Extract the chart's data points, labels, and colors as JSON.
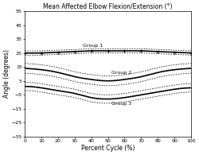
{
  "title": "Mean Affected Elbow Flexion/Extension (°)",
  "xlabel": "Percent Cycle (%)",
  "ylabel": "Angle (degrees)",
  "ylim": [
    -35,
    55
  ],
  "xlim": [
    0,
    100
  ],
  "yticks": [
    55,
    45,
    35,
    25,
    15,
    5,
    -5,
    -15,
    -25,
    -35
  ],
  "xticks": [
    0,
    10,
    20,
    30,
    40,
    50,
    60,
    70,
    80,
    90,
    100
  ],
  "group1_label": "Group 1",
  "group2_label": "Group 2",
  "group3_label": "Group 3",
  "group1_mean": [
    25,
    25,
    25.5,
    26,
    26.5,
    26.5,
    26.5,
    26.5,
    26,
    25.5,
    25
  ],
  "group1_sd": [
    1.5,
    1.5,
    1.5,
    1.5,
    1.5,
    1.5,
    1.5,
    1.5,
    1.5,
    1.5,
    1.5
  ],
  "group2_mean": [
    14,
    13,
    11,
    8,
    6,
    5,
    6,
    8,
    11,
    13,
    14
  ],
  "group2_sd": [
    3.5,
    3.5,
    3.5,
    3.5,
    3.5,
    3.5,
    3.5,
    3.5,
    3.5,
    3.5,
    3.5
  ],
  "group3_mean": [
    1,
    0,
    -2,
    -4,
    -7,
    -8,
    -7,
    -5,
    -3,
    -1,
    0
  ],
  "group3_sd": [
    3,
    3,
    3,
    3,
    3,
    3,
    3,
    3,
    3,
    3,
    3
  ],
  "group1_color": "#000000",
  "group2_color": "#000000",
  "group3_color": "#000000",
  "bg_color": "#ffffff",
  "title_fontsize": 5.5,
  "label_fontsize": 5.5,
  "tick_fontsize": 4.5
}
